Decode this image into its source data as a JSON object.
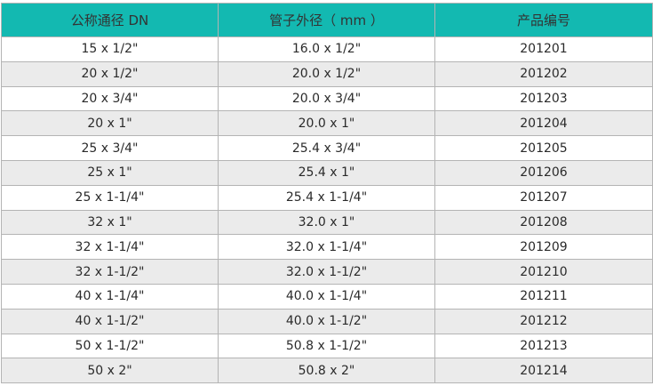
{
  "colors": {
    "header": "#13b9b1",
    "row_alt": "#ebebeb",
    "border": "#b4b4b4"
  },
  "headers": [
    "公称通径 DN",
    "管子外径（ mm ）",
    "产品编号"
  ],
  "rows": [
    [
      "15 x 1/2\"",
      "16.0 x 1/2\"",
      "201201"
    ],
    [
      "20 x 1/2\"",
      "20.0 x 1/2\"",
      "201202"
    ],
    [
      "20 x 3/4\"",
      "20.0 x 3/4\"",
      "201203"
    ],
    [
      "20 x 1\"",
      "20.0 x 1\"",
      "201204"
    ],
    [
      "25 x 3/4\"",
      "25.4 x 3/4\"",
      "201205"
    ],
    [
      "25 x 1\"",
      "25.4 x 1\"",
      "201206"
    ],
    [
      "25 x 1-1/4\"",
      "25.4 x 1-1/4\"",
      "201207"
    ],
    [
      "32 x 1\"",
      "32.0 x 1\"",
      "201208"
    ],
    [
      "32 x 1-1/4\"",
      "32.0 x 1-1/4\"",
      "201209"
    ],
    [
      "32 x 1-1/2\"",
      "32.0 x 1-1/2\"",
      "201210"
    ],
    [
      "40 x 1-1/4\"",
      "40.0 x 1-1/4\"",
      "201211"
    ],
    [
      "40 x 1-1/2\"",
      "40.0 x 1-1/2\"",
      "201212"
    ],
    [
      "50 x 1-1/2\"",
      "50.8 x 1-1/2\"",
      "201213"
    ],
    [
      "50 x 2\"",
      "50.8 x 2\"",
      "201214"
    ]
  ]
}
